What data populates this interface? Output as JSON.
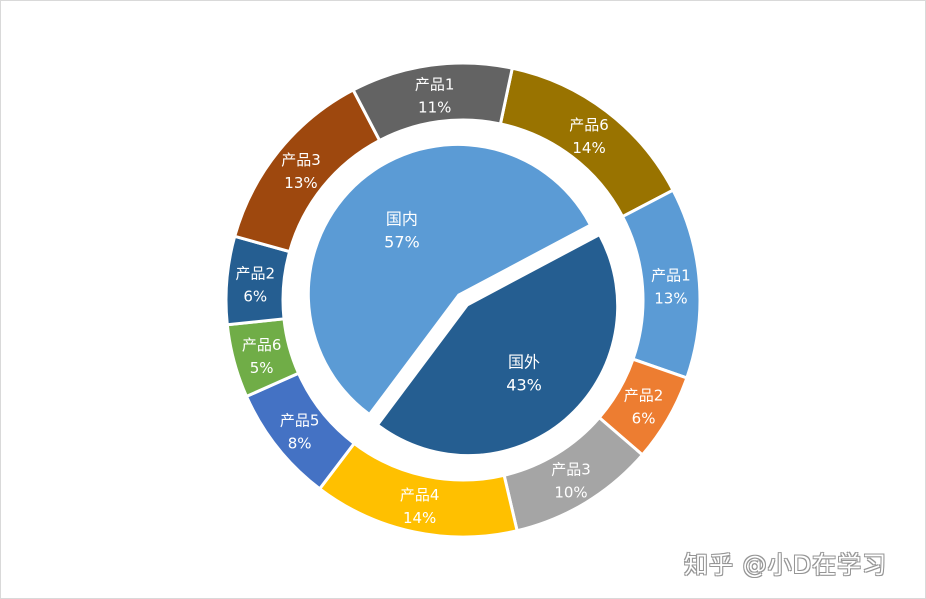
{
  "chart_data": {
    "type": "pie",
    "subtype": "nested-donut",
    "inner": [
      {
        "label": "国外",
        "value": 43,
        "pct_label": "43%",
        "color": "#255E91"
      },
      {
        "label": "国内",
        "value": 57,
        "pct_label": "57%",
        "color": "#5B9BD5"
      }
    ],
    "outer": [
      {
        "label": "产品6",
        "value": 14,
        "pct_label": "14%",
        "color": "#997300",
        "group": "国外"
      },
      {
        "label": "产品1",
        "value": 13,
        "pct_label": "13%",
        "color": "#5B9BD5",
        "group": "国内"
      },
      {
        "label": "产品2",
        "value": 6,
        "pct_label": "6%",
        "color": "#ED7D31",
        "group": "国内"
      },
      {
        "label": "产品3",
        "value": 10,
        "pct_label": "10%",
        "color": "#A5A5A5",
        "group": "国内"
      },
      {
        "label": "产品4",
        "value": 14,
        "pct_label": "14%",
        "color": "#FFC000",
        "group": "国内"
      },
      {
        "label": "产品5",
        "value": 8,
        "pct_label": "8%",
        "color": "#4472C4",
        "group": "国内"
      },
      {
        "label": "产品6",
        "value": 5,
        "pct_label": "5%",
        "color": "#70AD47",
        "group": "国内"
      },
      {
        "label": "产品2",
        "value": 6,
        "pct_label": "6%",
        "color": "#255E91",
        "group": "国外"
      },
      {
        "label": "产品3",
        "value": 13,
        "pct_label": "13%",
        "color": "#9E480E",
        "group": "国外"
      },
      {
        "label": "产品1",
        "value": 11,
        "pct_label": "11%",
        "color": "#636363",
        "group": "国外"
      }
    ],
    "legend": "none"
  },
  "watermark": "知乎 @小D在学习"
}
